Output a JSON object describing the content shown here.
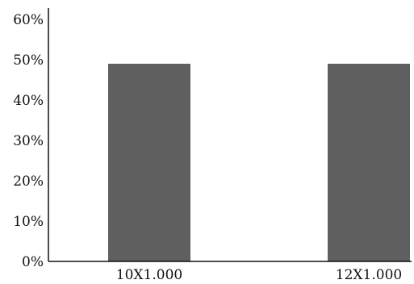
{
  "chart_data": {
    "type": "bar",
    "categories": [
      "10X1.000",
      "12X1.000"
    ],
    "values": [
      49,
      49
    ],
    "ylim": [
      0,
      60
    ],
    "yticks": [
      0,
      10,
      20,
      30,
      40,
      50,
      60
    ],
    "ytick_suffix": "%",
    "bar_color": "#5f5f5f",
    "axis_color": "#111111",
    "grid": false,
    "legend": "none"
  }
}
